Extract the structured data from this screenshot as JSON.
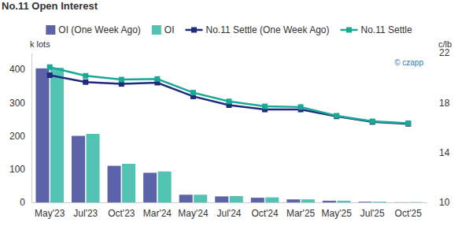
{
  "chart_data": {
    "type": "bar",
    "title": "No.11 Open Interest",
    "y_label": "k lots",
    "y2_label": "c/lb",
    "annotation": "© czapp",
    "categories": [
      "May'23",
      "Jul'23",
      "Oct'23",
      "Mar'24",
      "May'24",
      "Jul'24",
      "Oct'24",
      "Mar'25",
      "May'25",
      "Jul'25",
      "Oct'25"
    ],
    "series": [
      {
        "name": "OI (One Week Ago)",
        "type": "bar",
        "color": "#5c63a8",
        "values": [
          403,
          200,
          110,
          89,
          23,
          18,
          14,
          9,
          5,
          2,
          0.5
        ]
      },
      {
        "name": "OI",
        "type": "bar",
        "color": "#52c3b3",
        "values": [
          405,
          206,
          116,
          93,
          23,
          19,
          15,
          9,
          5,
          2,
          1
        ]
      },
      {
        "name": "No.11 Settle (One Week Ago)",
        "type": "line",
        "axis": "y2",
        "color": "#1f2b7b",
        "marker": "square",
        "values": [
          20.2,
          19.65,
          19.5,
          19.6,
          18.5,
          17.8,
          17.45,
          17.45,
          16.9,
          16.45,
          16.3
        ]
      },
      {
        "name": "No.11 Settle",
        "type": "line",
        "axis": "y2",
        "color": "#1ba996",
        "marker": "square",
        "values": [
          20.85,
          20.15,
          19.85,
          19.9,
          18.8,
          18.1,
          17.7,
          17.65,
          16.95,
          16.5,
          16.35
        ]
      }
    ],
    "ylim": [
      0,
      450
    ],
    "yticks": [
      0,
      100,
      200,
      300,
      400
    ],
    "y2lim": [
      10,
      22
    ],
    "y2ticks": [
      10,
      14,
      18,
      22
    ],
    "legend": "top",
    "grid": false
  }
}
